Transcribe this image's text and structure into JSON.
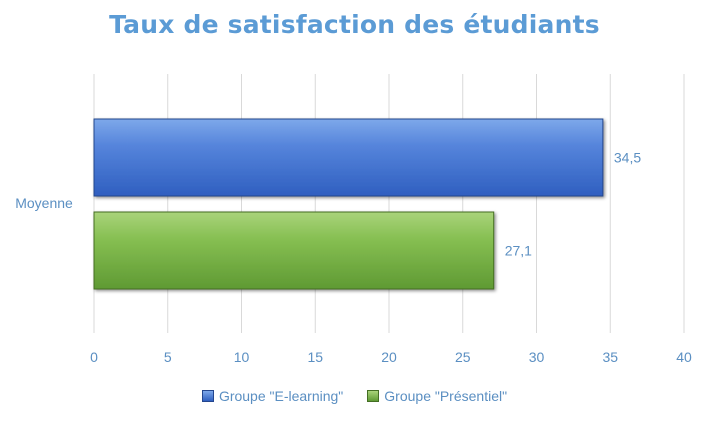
{
  "chart_data": {
    "type": "bar",
    "orientation": "horizontal",
    "title": "Taux de satisfaction des étudiants",
    "categories": [
      "Moyenne"
    ],
    "series": [
      {
        "name": "Groupe \"E-learning\"",
        "values": [
          34.5
        ],
        "value_labels": [
          "34,5"
        ],
        "color": "#4472c4"
      },
      {
        "name": "Groupe \"Présentiel\"",
        "values": [
          27.1
        ],
        "value_labels": [
          "27,1"
        ],
        "color": "#70ad47"
      }
    ],
    "xlim": [
      0,
      40
    ],
    "xticks": [
      "0",
      "5",
      "10",
      "15",
      "20",
      "25",
      "30",
      "35",
      "40"
    ],
    "grid": true,
    "legend_position": "bottom"
  }
}
